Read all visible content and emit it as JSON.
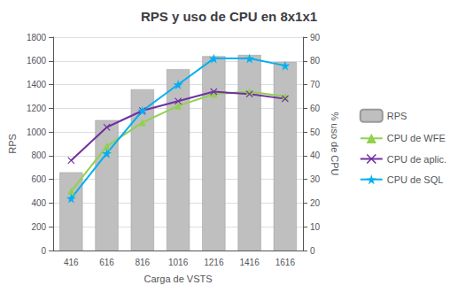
{
  "chart_data": {
    "type": "bar",
    "title": "RPS y uso de CPU en 8x1x1",
    "xlabel": "Carga de VSTS",
    "ylabel": "RPS",
    "y2label": "% uso de CPU",
    "categories": [
      416,
      616,
      816,
      1016,
      1216,
      1416,
      1616
    ],
    "series": [
      {
        "name": "RPS",
        "type": "bar",
        "color": "#bfbfbf",
        "values": [
          660,
          1100,
          1360,
          1530,
          1640,
          1650,
          1590
        ]
      },
      {
        "name": "CPU de WFE",
        "type": "line",
        "axis": "y2",
        "color": "#92d050",
        "marker": "triangle",
        "values": [
          25,
          44,
          54,
          61,
          66,
          67,
          65
        ]
      },
      {
        "name": "CPU de aplic.",
        "type": "line",
        "axis": "y2",
        "color": "#7030a0",
        "marker": "x",
        "values": [
          38,
          52,
          59,
          63,
          67,
          66,
          64
        ]
      },
      {
        "name": "CPU de SQL",
        "type": "line",
        "axis": "y2",
        "color": "#00b0f0",
        "marker": "star",
        "values": [
          22,
          41,
          59,
          70,
          81,
          81,
          78
        ]
      }
    ],
    "ylim": [
      0,
      1800
    ],
    "yticks": [
      0,
      200,
      400,
      600,
      800,
      1000,
      1200,
      1400,
      1600,
      1800
    ],
    "y2lim": [
      0,
      90
    ],
    "y2ticks": [
      0,
      10,
      20,
      30,
      40,
      50,
      60,
      70,
      80,
      90
    ],
    "grid": true,
    "legend": "right"
  }
}
